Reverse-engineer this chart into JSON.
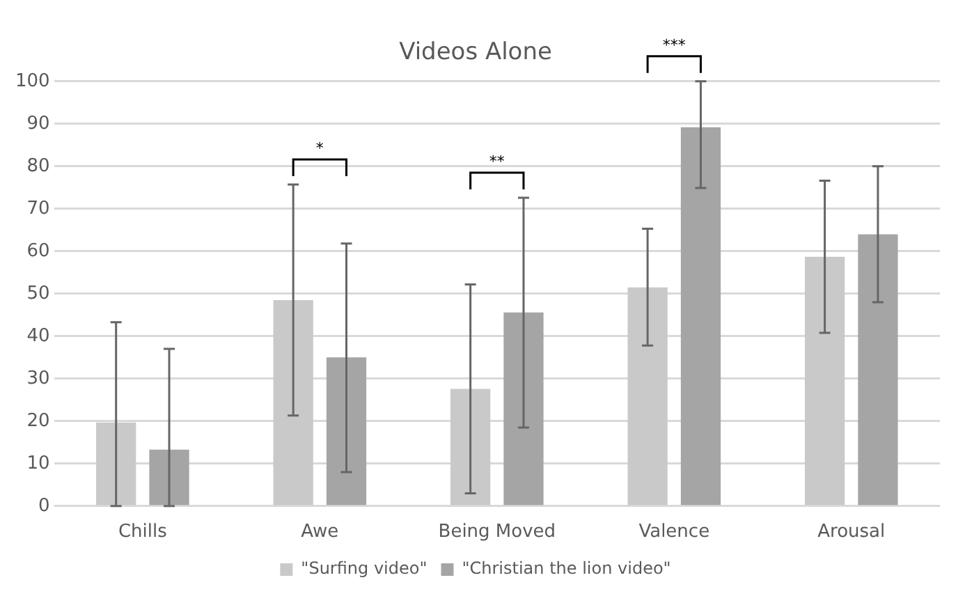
{
  "chart_data": {
    "type": "bar",
    "title": "Videos Alone",
    "categories": [
      "Chills",
      "Awe",
      "Being Moved",
      "Valence",
      "Arousal"
    ],
    "series": [
      {
        "name": "\"Surfing video\"",
        "color": "#c9c9c9",
        "values": [
          19.7,
          48.5,
          27.6,
          51.5,
          58.7
        ],
        "errors": [
          [
            0,
            43.3
          ],
          [
            21.3,
            75.7
          ],
          [
            3,
            52.2
          ],
          [
            37.8,
            65.3
          ],
          [
            40.8,
            76.6
          ]
        ]
      },
      {
        "name": "\"Christian the lion video\"",
        "color": "#a5a5a5",
        "values": [
          13.3,
          35,
          45.6,
          89.2,
          64
        ],
        "errors": [
          [
            0,
            37
          ],
          [
            8,
            61.8
          ],
          [
            18.5,
            72.6
          ],
          [
            74.9,
            100
          ],
          [
            48,
            80
          ]
        ]
      }
    ],
    "annotations": [
      "*",
      "**",
      "***"
    ],
    "ylim": [
      0,
      100
    ],
    "yticks": [
      0,
      10,
      20,
      30,
      40,
      50,
      60,
      70,
      80,
      90,
      100
    ],
    "grid": "y",
    "legend": "bottom"
  }
}
